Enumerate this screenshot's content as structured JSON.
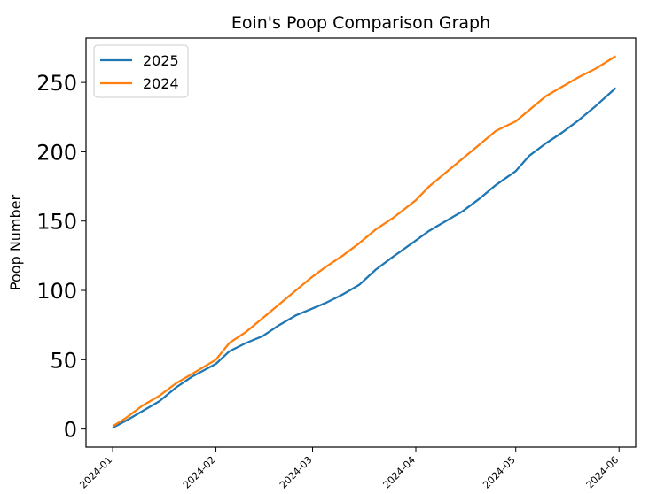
{
  "chart_data": {
    "type": "line",
    "title": "Eoin's Poop Comparison Graph",
    "xlabel": "",
    "ylabel": "Poop Number",
    "x_ticks": [
      "2024-01",
      "2024-02",
      "2024-03",
      "2024-04",
      "2024-05",
      "2024-06"
    ],
    "y_ticks": [
      0,
      50,
      100,
      150,
      200,
      250
    ],
    "xlim": [
      "2023-12-24",
      "2024-06-06"
    ],
    "ylim": [
      -13,
      282
    ],
    "grid": false,
    "legend_position": "upper-left",
    "series": [
      {
        "name": "2025",
        "color": "#1f77b4",
        "points": [
          [
            "2024-01-01",
            1
          ],
          [
            "2024-01-05",
            6
          ],
          [
            "2024-01-10",
            13
          ],
          [
            "2024-01-15",
            20
          ],
          [
            "2024-01-20",
            30
          ],
          [
            "2024-01-25",
            38
          ],
          [
            "2024-02-01",
            47
          ],
          [
            "2024-02-05",
            56
          ],
          [
            "2024-02-10",
            62
          ],
          [
            "2024-02-15",
            67
          ],
          [
            "2024-02-20",
            75
          ],
          [
            "2024-02-25",
            82
          ],
          [
            "2024-03-01",
            87
          ],
          [
            "2024-03-05",
            91
          ],
          [
            "2024-03-10",
            97
          ],
          [
            "2024-03-15",
            104
          ],
          [
            "2024-03-20",
            115
          ],
          [
            "2024-03-25",
            124
          ],
          [
            "2024-04-01",
            136
          ],
          [
            "2024-04-05",
            143
          ],
          [
            "2024-04-10",
            150
          ],
          [
            "2024-04-15",
            157
          ],
          [
            "2024-04-20",
            166
          ],
          [
            "2024-04-25",
            176
          ],
          [
            "2024-05-01",
            186
          ],
          [
            "2024-05-05",
            197
          ],
          [
            "2024-05-10",
            206
          ],
          [
            "2024-05-15",
            214
          ],
          [
            "2024-05-20",
            223
          ],
          [
            "2024-05-25",
            233
          ],
          [
            "2024-05-31",
            246
          ]
        ]
      },
      {
        "name": "2024",
        "color": "#ff7f0e",
        "points": [
          [
            "2024-01-01",
            2
          ],
          [
            "2024-01-05",
            8
          ],
          [
            "2024-01-10",
            17
          ],
          [
            "2024-01-15",
            24
          ],
          [
            "2024-01-20",
            33
          ],
          [
            "2024-01-25",
            40
          ],
          [
            "2024-02-01",
            50
          ],
          [
            "2024-02-05",
            62
          ],
          [
            "2024-02-10",
            70
          ],
          [
            "2024-02-15",
            80
          ],
          [
            "2024-02-20",
            90
          ],
          [
            "2024-02-25",
            100
          ],
          [
            "2024-03-01",
            110
          ],
          [
            "2024-03-05",
            117
          ],
          [
            "2024-03-10",
            125
          ],
          [
            "2024-03-15",
            134
          ],
          [
            "2024-03-20",
            144
          ],
          [
            "2024-03-25",
            152
          ],
          [
            "2024-04-01",
            165
          ],
          [
            "2024-04-05",
            175
          ],
          [
            "2024-04-10",
            185
          ],
          [
            "2024-04-15",
            195
          ],
          [
            "2024-04-20",
            205
          ],
          [
            "2024-04-25",
            215
          ],
          [
            "2024-05-01",
            222
          ],
          [
            "2024-05-05",
            230
          ],
          [
            "2024-05-10",
            240
          ],
          [
            "2024-05-15",
            247
          ],
          [
            "2024-05-20",
            254
          ],
          [
            "2024-05-25",
            260
          ],
          [
            "2024-05-31",
            269
          ]
        ]
      }
    ]
  }
}
